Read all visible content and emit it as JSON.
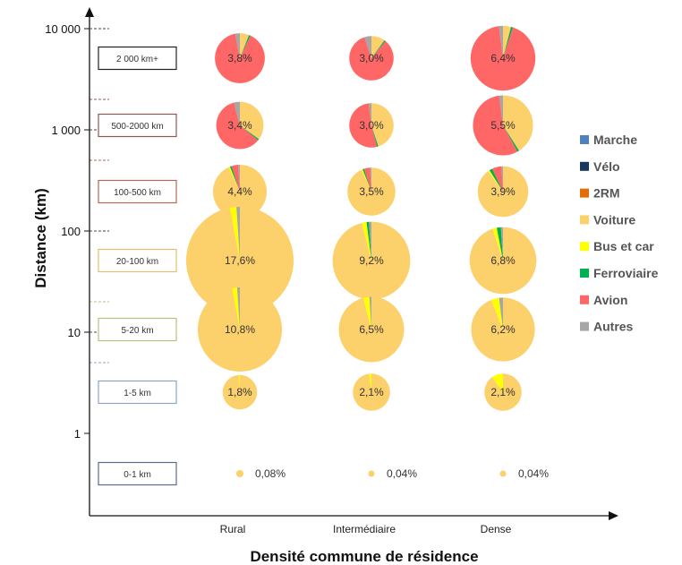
{
  "chart_data": {
    "type": "pie-bubble",
    "xlabel": "Densité commune de résidence",
    "ylabel": "Distance (km)",
    "y_scale": "log",
    "y_ticks": [
      {
        "value": 1,
        "label": "1"
      },
      {
        "value": 10,
        "label": "10"
      },
      {
        "value": 100,
        "label": "100"
      },
      {
        "value": 1000,
        "label": "1 000"
      },
      {
        "value": 10000,
        "label": "10 000"
      }
    ],
    "categories": [
      "Rural",
      "Intermédiaire",
      "Dense"
    ],
    "distance_bands": [
      {
        "label": "2 000 km+",
        "color": "#222222"
      },
      {
        "label": "500-2000 km",
        "color": "#8b5a50"
      },
      {
        "label": "100-500 km",
        "color": "#b06a5a"
      },
      {
        "label": "20-100 km",
        "color": "#e0c070"
      },
      {
        "label": "5-20 km",
        "color": "#b8c080"
      },
      {
        "label": "1-5 km",
        "color": "#8ca6c4"
      },
      {
        "label": "0-1 km",
        "color": "#5a6e8a"
      }
    ],
    "modes": [
      {
        "name": "Marche",
        "color": "#4f81bd"
      },
      {
        "name": "Vélo",
        "color": "#17375e"
      },
      {
        "name": "2RM",
        "color": "#e46c0a"
      },
      {
        "name": "Voiture",
        "color": "#fcd06a"
      },
      {
        "name": "Bus et car",
        "color": "#ffff00"
      },
      {
        "name": "Ferroviaire",
        "color": "#00b050"
      },
      {
        "name": "Avion",
        "color": "#ff6666"
      },
      {
        "name": "Autres",
        "color": "#a6a6a6"
      }
    ],
    "cells": [
      {
        "band": 0,
        "cat": 0,
        "pct": 3.8,
        "label": "3,8%",
        "shares": [
          0,
          0,
          0,
          6,
          0,
          1,
          90,
          3
        ]
      },
      {
        "band": 0,
        "cat": 1,
        "pct": 3.0,
        "label": "3,0%",
        "shares": [
          0,
          0,
          0,
          10,
          0,
          1,
          84,
          5
        ]
      },
      {
        "band": 0,
        "cat": 2,
        "pct": 6.4,
        "label": "6,4%",
        "shares": [
          0,
          0,
          0,
          4,
          0,
          1,
          93,
          2
        ]
      },
      {
        "band": 1,
        "cat": 0,
        "pct": 3.4,
        "label": "3,4%",
        "shares": [
          0,
          0,
          0,
          35,
          0,
          1,
          60,
          4
        ]
      },
      {
        "band": 1,
        "cat": 1,
        "pct": 3.0,
        "label": "3,0%",
        "shares": [
          0,
          0,
          0,
          45,
          0,
          1,
          52,
          2
        ]
      },
      {
        "band": 1,
        "cat": 2,
        "pct": 5.5,
        "label": "5,5%",
        "shares": [
          0,
          0,
          0,
          41,
          0,
          1,
          56,
          2
        ]
      },
      {
        "band": 2,
        "cat": 0,
        "pct": 4.4,
        "label": "4,4%",
        "shares": [
          0,
          0,
          0,
          93,
          1,
          1,
          4,
          1
        ]
      },
      {
        "band": 2,
        "cat": 1,
        "pct": 3.5,
        "label": "3,5%",
        "shares": [
          0,
          0,
          0,
          93,
          1,
          1,
          4,
          1
        ]
      },
      {
        "band": 2,
        "cat": 2,
        "pct": 3.9,
        "label": "3,9%",
        "shares": [
          0,
          0,
          0,
          90,
          1,
          2,
          6,
          1
        ]
      },
      {
        "band": 3,
        "cat": 0,
        "pct": 17.6,
        "label": "17,6%",
        "shares": [
          0,
          0,
          0,
          97,
          2,
          0,
          0,
          1
        ]
      },
      {
        "band": 3,
        "cat": 1,
        "pct": 9.2,
        "label": "9,2%",
        "shares": [
          0,
          0,
          0,
          96,
          2,
          1,
          0,
          1
        ]
      },
      {
        "band": 3,
        "cat": 2,
        "pct": 6.8,
        "label": "6,8%",
        "shares": [
          0,
          0,
          0,
          95,
          2,
          2,
          0,
          1
        ]
      },
      {
        "band": 4,
        "cat": 0,
        "pct": 10.8,
        "label": "10,8%",
        "shares": [
          0,
          0,
          0,
          97,
          2,
          0,
          0,
          1
        ]
      },
      {
        "band": 4,
        "cat": 1,
        "pct": 6.5,
        "label": "6,5%",
        "shares": [
          0,
          0,
          0,
          96,
          3,
          0,
          0,
          1
        ]
      },
      {
        "band": 4,
        "cat": 2,
        "pct": 6.2,
        "label": "6,2%",
        "shares": [
          0,
          0,
          0,
          94,
          4,
          0,
          0,
          2
        ]
      },
      {
        "band": 5,
        "cat": 0,
        "pct": 1.8,
        "label": "1,8%",
        "shares": [
          0,
          0,
          0,
          99,
          1,
          0,
          0,
          0
        ]
      },
      {
        "band": 5,
        "cat": 1,
        "pct": 2.1,
        "label": "2,1%",
        "shares": [
          0,
          0,
          0,
          98,
          2,
          0,
          0,
          0
        ]
      },
      {
        "band": 5,
        "cat": 2,
        "pct": 2.1,
        "label": "2,1%",
        "shares": [
          0,
          0,
          0,
          90,
          10,
          0,
          0,
          0
        ]
      },
      {
        "band": 6,
        "cat": 0,
        "pct": 0.08,
        "label": "0,08%",
        "shares": [
          0,
          0,
          0,
          100,
          0,
          0,
          0,
          0
        ]
      },
      {
        "band": 6,
        "cat": 1,
        "pct": 0.04,
        "label": "0,04%",
        "shares": [
          0,
          0,
          0,
          100,
          0,
          0,
          0,
          0
        ]
      },
      {
        "band": 6,
        "cat": 2,
        "pct": 0.04,
        "label": "0,04%",
        "shares": [
          0,
          0,
          0,
          100,
          0,
          0,
          0,
          0
        ]
      }
    ],
    "legend_position": "right"
  }
}
